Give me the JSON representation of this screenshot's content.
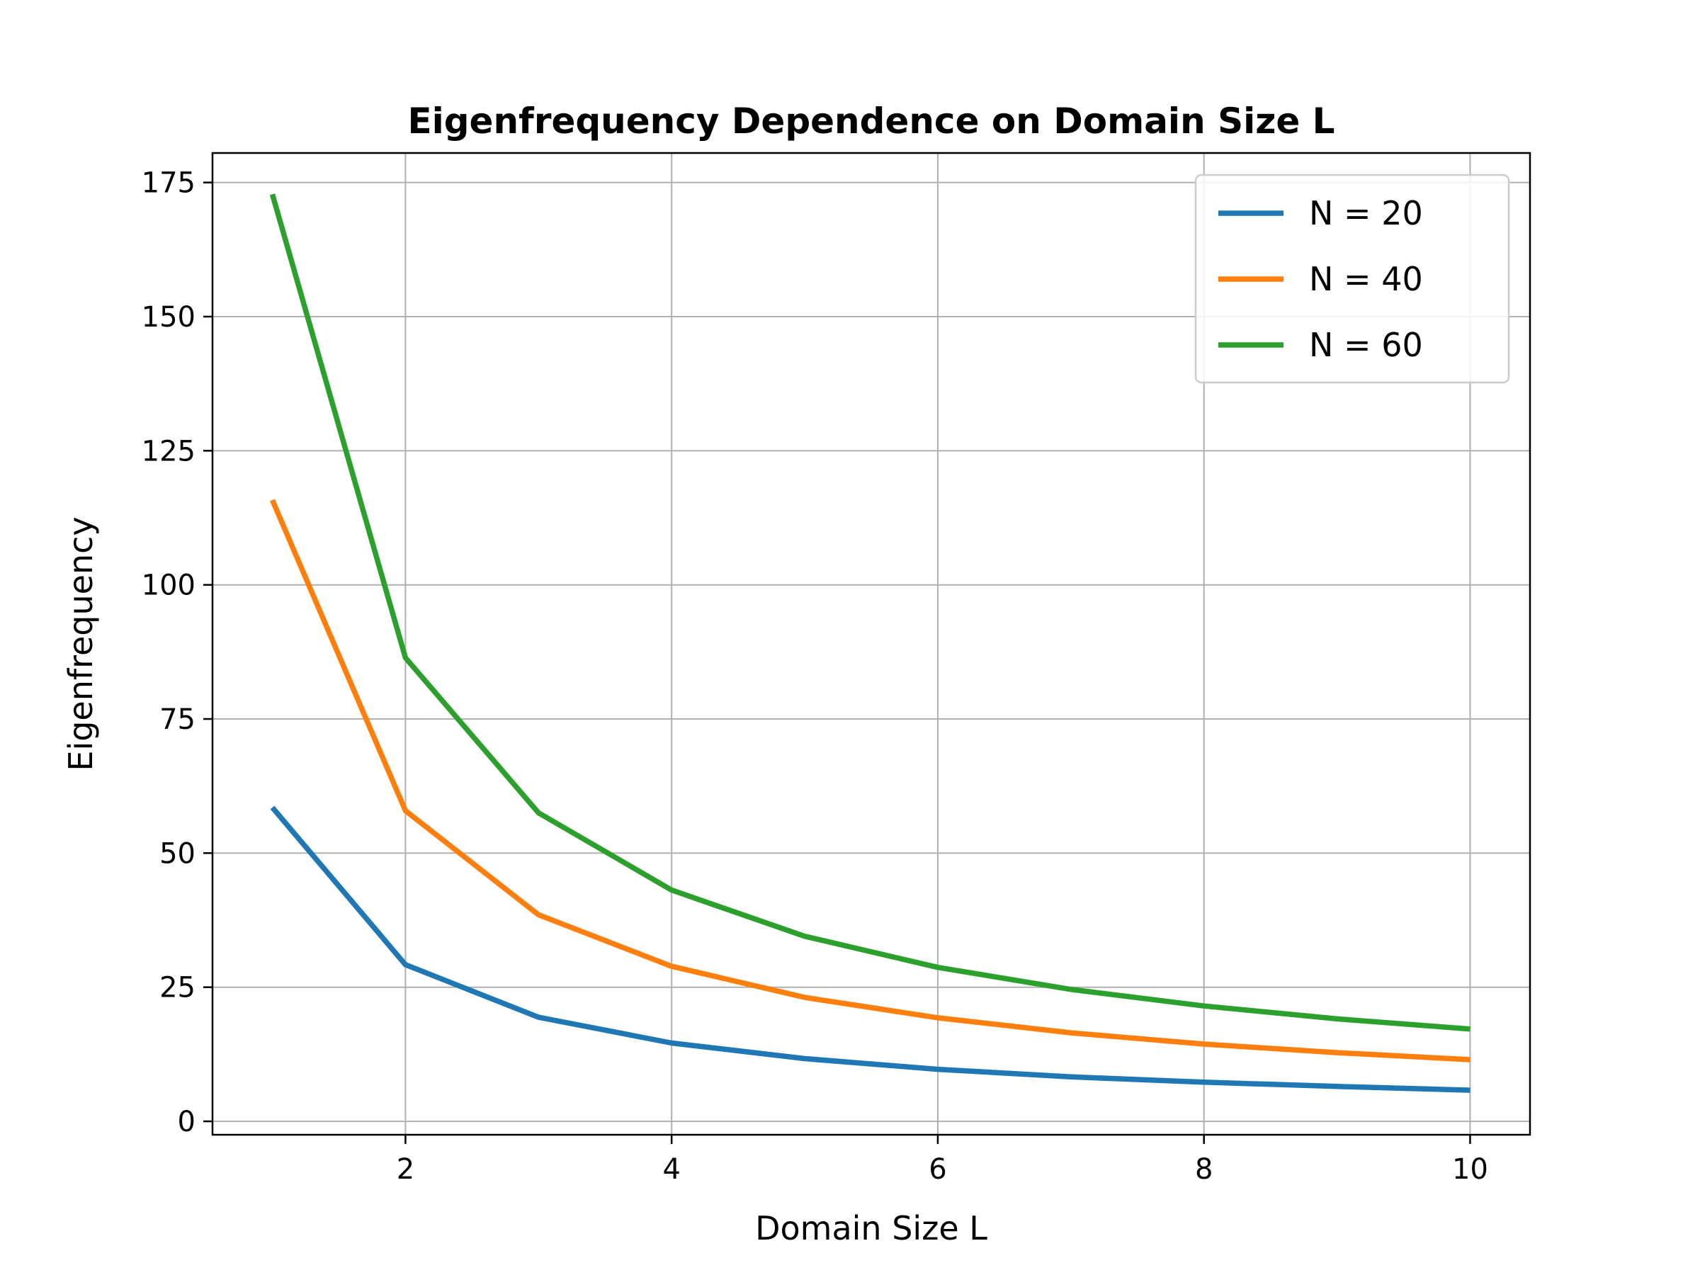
{
  "chart_data": {
    "type": "line",
    "title": "Eigenfrequency Dependence on Domain Size L",
    "xlabel": "Domain Size L",
    "ylabel": "Eigenfrequency",
    "x": [
      1,
      2,
      3,
      4,
      5,
      6,
      7,
      8,
      9,
      10
    ],
    "xlim": [
      0.55,
      10.45
    ],
    "ylim": [
      -2.5,
      180.5
    ],
    "xticks": [
      2,
      4,
      6,
      8,
      10
    ],
    "yticks": [
      0,
      25,
      50,
      75,
      100,
      125,
      150,
      175
    ],
    "grid": true,
    "legend_position": "top-right",
    "series": [
      {
        "name": "N = 20",
        "color": "#1f77b4",
        "values": [
          58.5,
          29.2,
          19.4,
          14.6,
          11.7,
          9.7,
          8.3,
          7.3,
          6.5,
          5.8
        ]
      },
      {
        "name": "N = 40",
        "color": "#ff7f0e",
        "values": [
          115.8,
          57.9,
          38.5,
          28.9,
          23.1,
          19.3,
          16.5,
          14.4,
          12.8,
          11.5
        ]
      },
      {
        "name": "N = 60",
        "color": "#2ca02c",
        "values": [
          172.8,
          86.4,
          57.5,
          43.1,
          34.5,
          28.7,
          24.6,
          21.5,
          19.1,
          17.2
        ]
      }
    ]
  }
}
